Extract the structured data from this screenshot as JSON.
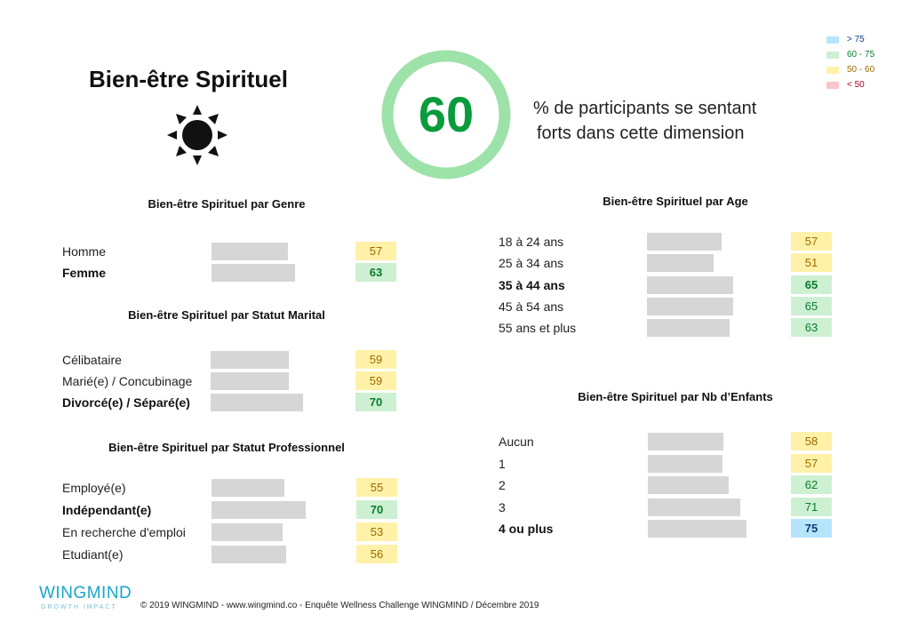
{
  "header": {
    "title": "Bien-être Spirituel",
    "icon": "sun-icon",
    "score": "60",
    "subtitle_line1": "% de participants se sentant",
    "subtitle_line2": "forts dans cette dimension",
    "ring_color": "#9de2a9",
    "score_color": "#0a9b3c"
  },
  "legend": [
    {
      "label": "> 75",
      "color": "#b6e5fb",
      "text_color": "#0a3e7c"
    },
    {
      "label": "60 - 75",
      "color": "#cdf0d2",
      "text_color": "#0a7a2e"
    },
    {
      "label": "50 - 60",
      "color": "#fff1a8",
      "text_color": "#9c6b00"
    },
    {
      "label": "< 50",
      "color": "#f9c6cc",
      "text_color": "#b0001e"
    }
  ],
  "sections": {
    "genre": {
      "title": "Bien-être Spirituel par Genre",
      "rows": [
        {
          "label": "Homme",
          "value": 57,
          "color": "yellow",
          "bold": false
        },
        {
          "label": "Femme",
          "value": 63,
          "color": "green",
          "bold": true
        }
      ]
    },
    "marital": {
      "title": "Bien-être Spirituel par Statut Marital",
      "rows": [
        {
          "label": "Célibataire",
          "value": 59,
          "color": "yellow",
          "bold": false
        },
        {
          "label": "Marié(e) / Concubinage",
          "value": 59,
          "color": "yellow",
          "bold": false
        },
        {
          "label": "Divorcé(e) / Séparé(e)",
          "value": 70,
          "color": "green",
          "bold": true
        }
      ]
    },
    "pro": {
      "title": "Bien-être Spirituel par Statut Professionnel",
      "rows": [
        {
          "label": "Employé(e)",
          "value": 55,
          "color": "yellow",
          "bold": false
        },
        {
          "label": "Indépendant(e)",
          "value": 70,
          "color": "green",
          "bold": true
        },
        {
          "label": "En recherche d'emploi",
          "value": 53,
          "color": "yellow",
          "bold": false
        },
        {
          "label": "Etudiant(e)",
          "value": 56,
          "color": "yellow",
          "bold": false
        }
      ]
    },
    "age": {
      "title": "Bien-être Spirituel par Age",
      "rows": [
        {
          "label": "18 à 24 ans",
          "value": 57,
          "color": "yellow",
          "bold": false
        },
        {
          "label": "25 à 34 ans",
          "value": 51,
          "color": "yellow",
          "bold": false
        },
        {
          "label": "35 à 44 ans",
          "value": 65,
          "color": "green",
          "bold": true
        },
        {
          "label": "45 à 54 ans",
          "value": 65,
          "color": "green",
          "bold": false
        },
        {
          "label": "55 ans et plus",
          "value": 63,
          "color": "green",
          "bold": false
        }
      ]
    },
    "enfants": {
      "title": "Bien-être Spirituel par Nb d’Enfants",
      "rows": [
        {
          "label": "Aucun",
          "value": 58,
          "color": "yellow",
          "bold": false
        },
        {
          "label": "1",
          "value": 57,
          "color": "yellow",
          "bold": false
        },
        {
          "label": "2",
          "value": 62,
          "color": "green",
          "bold": false
        },
        {
          "label": "3",
          "value": 71,
          "color": "green",
          "bold": false
        },
        {
          "label": "4 ou plus",
          "value": 75,
          "color": "blue",
          "bold": true
        }
      ]
    }
  },
  "footer": {
    "logo": "WINGMIND",
    "logo_sub": "GROWTH IMPACT",
    "text": "© 2019 WINGMIND - www.wingmind.co - Enquête Wellness Challenge WINGMIND / Décembre 2019"
  }
}
